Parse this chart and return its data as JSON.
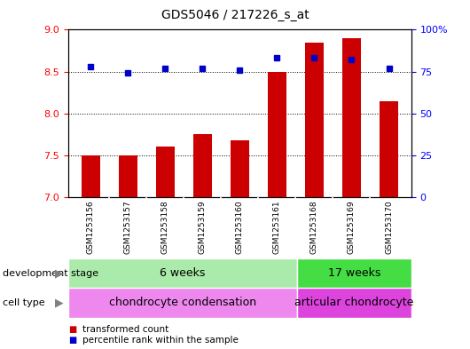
{
  "title": "GDS5046 / 217226_s_at",
  "samples": [
    "GSM1253156",
    "GSM1253157",
    "GSM1253158",
    "GSM1253159",
    "GSM1253160",
    "GSM1253161",
    "GSM1253168",
    "GSM1253169",
    "GSM1253170"
  ],
  "bar_values": [
    7.5,
    7.5,
    7.6,
    7.75,
    7.68,
    8.5,
    8.85,
    8.9,
    8.15
  ],
  "bar_bottom": 7.0,
  "percentile_values": [
    78,
    74,
    77,
    77,
    76,
    83,
    83,
    82,
    77
  ],
  "ylim_left": [
    7.0,
    9.0
  ],
  "ylim_right": [
    0,
    100
  ],
  "yticks_left": [
    7.0,
    7.5,
    8.0,
    8.5,
    9.0
  ],
  "yticks_right": [
    0,
    25,
    50,
    75,
    100
  ],
  "bar_color": "#cc0000",
  "dot_color": "#0000cc",
  "background_color": "#ffffff",
  "plot_bg_color": "#ffffff",
  "stage_6w_label": "6 weeks",
  "stage_17w_label": "17 weeks",
  "celltype_1_label": "chondrocyte condensation",
  "celltype_2_label": "articular chondrocyte",
  "dev_stage_label": "development stage",
  "cell_type_label": "cell type",
  "group1_count": 6,
  "group2_count": 3,
  "color_6w": "#aaeaaa",
  "color_17w": "#44dd44",
  "color_celltype1": "#ee88ee",
  "color_celltype2": "#dd44dd",
  "legend_bar": "transformed count",
  "legend_dot": "percentile rank within the sample",
  "bar_width": 0.5,
  "xlabel_fontsize": 7,
  "sample_label_bg": "#cccccc"
}
